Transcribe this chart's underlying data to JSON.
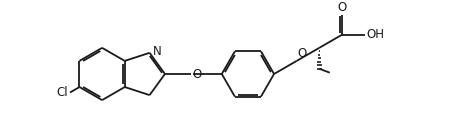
{
  "background": "#ffffff",
  "line_color": "#1a1a1a",
  "line_width": 1.3,
  "font_size": 8.5,
  "fig_width": 4.71,
  "fig_height": 1.37,
  "dpi": 100,
  "xlim": [
    0,
    4.71
  ],
  "ylim": [
    0,
    1.37
  ]
}
